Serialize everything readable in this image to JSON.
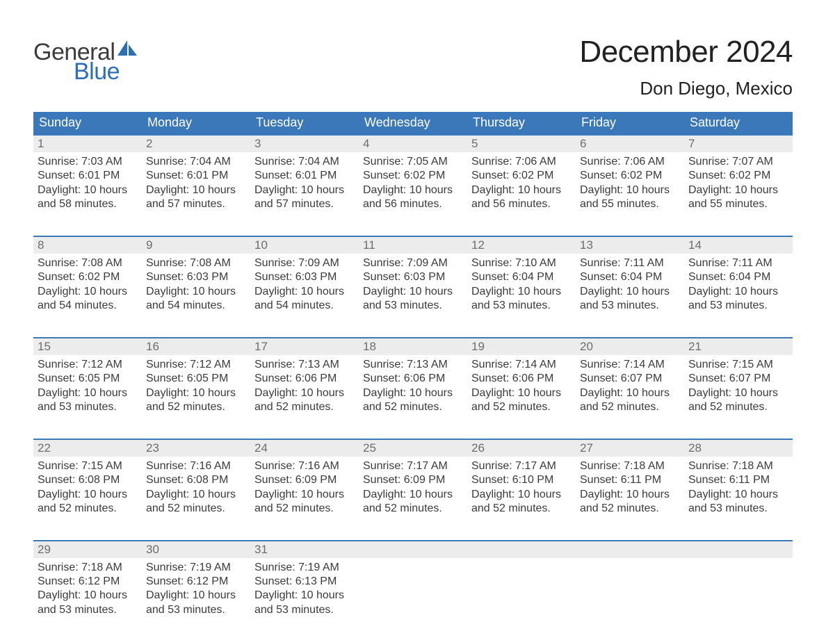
{
  "logo": {
    "text_top": "General",
    "text_bottom": "Blue"
  },
  "title": {
    "month": "December 2024",
    "location": "Don Diego, Mexico"
  },
  "colors": {
    "header_bg": "#3a78b9",
    "header_text": "#ffffff",
    "row_border": "#3a78b9",
    "daynum_bg": "#ececec",
    "daynum_text": "#6d6d6d",
    "body_text": "#3b3b3b",
    "logo_blue": "#2c6fb5"
  },
  "typography": {
    "month_title_pt": 44,
    "location_pt": 26,
    "weekday_pt": 18,
    "daynum_pt": 17,
    "body_pt": 16,
    "logo_pt": 34
  },
  "weekdays": [
    "Sunday",
    "Monday",
    "Tuesday",
    "Wednesday",
    "Thursday",
    "Friday",
    "Saturday"
  ],
  "labels": {
    "sunrise": "Sunrise:",
    "sunset": "Sunset:",
    "daylight": "Daylight:"
  },
  "weeks": [
    [
      {
        "n": "1",
        "sunrise": "7:03 AM",
        "sunset": "6:01 PM",
        "daylight1": "10 hours",
        "daylight2": "and 58 minutes."
      },
      {
        "n": "2",
        "sunrise": "7:04 AM",
        "sunset": "6:01 PM",
        "daylight1": "10 hours",
        "daylight2": "and 57 minutes."
      },
      {
        "n": "3",
        "sunrise": "7:04 AM",
        "sunset": "6:01 PM",
        "daylight1": "10 hours",
        "daylight2": "and 57 minutes."
      },
      {
        "n": "4",
        "sunrise": "7:05 AM",
        "sunset": "6:02 PM",
        "daylight1": "10 hours",
        "daylight2": "and 56 minutes."
      },
      {
        "n": "5",
        "sunrise": "7:06 AM",
        "sunset": "6:02 PM",
        "daylight1": "10 hours",
        "daylight2": "and 56 minutes."
      },
      {
        "n": "6",
        "sunrise": "7:06 AM",
        "sunset": "6:02 PM",
        "daylight1": "10 hours",
        "daylight2": "and 55 minutes."
      },
      {
        "n": "7",
        "sunrise": "7:07 AM",
        "sunset": "6:02 PM",
        "daylight1": "10 hours",
        "daylight2": "and 55 minutes."
      }
    ],
    [
      {
        "n": "8",
        "sunrise": "7:08 AM",
        "sunset": "6:02 PM",
        "daylight1": "10 hours",
        "daylight2": "and 54 minutes."
      },
      {
        "n": "9",
        "sunrise": "7:08 AM",
        "sunset": "6:03 PM",
        "daylight1": "10 hours",
        "daylight2": "and 54 minutes."
      },
      {
        "n": "10",
        "sunrise": "7:09 AM",
        "sunset": "6:03 PM",
        "daylight1": "10 hours",
        "daylight2": "and 54 minutes."
      },
      {
        "n": "11",
        "sunrise": "7:09 AM",
        "sunset": "6:03 PM",
        "daylight1": "10 hours",
        "daylight2": "and 53 minutes."
      },
      {
        "n": "12",
        "sunrise": "7:10 AM",
        "sunset": "6:04 PM",
        "daylight1": "10 hours",
        "daylight2": "and 53 minutes."
      },
      {
        "n": "13",
        "sunrise": "7:11 AM",
        "sunset": "6:04 PM",
        "daylight1": "10 hours",
        "daylight2": "and 53 minutes."
      },
      {
        "n": "14",
        "sunrise": "7:11 AM",
        "sunset": "6:04 PM",
        "daylight1": "10 hours",
        "daylight2": "and 53 minutes."
      }
    ],
    [
      {
        "n": "15",
        "sunrise": "7:12 AM",
        "sunset": "6:05 PM",
        "daylight1": "10 hours",
        "daylight2": "and 53 minutes."
      },
      {
        "n": "16",
        "sunrise": "7:12 AM",
        "sunset": "6:05 PM",
        "daylight1": "10 hours",
        "daylight2": "and 52 minutes."
      },
      {
        "n": "17",
        "sunrise": "7:13 AM",
        "sunset": "6:06 PM",
        "daylight1": "10 hours",
        "daylight2": "and 52 minutes."
      },
      {
        "n": "18",
        "sunrise": "7:13 AM",
        "sunset": "6:06 PM",
        "daylight1": "10 hours",
        "daylight2": "and 52 minutes."
      },
      {
        "n": "19",
        "sunrise": "7:14 AM",
        "sunset": "6:06 PM",
        "daylight1": "10 hours",
        "daylight2": "and 52 minutes."
      },
      {
        "n": "20",
        "sunrise": "7:14 AM",
        "sunset": "6:07 PM",
        "daylight1": "10 hours",
        "daylight2": "and 52 minutes."
      },
      {
        "n": "21",
        "sunrise": "7:15 AM",
        "sunset": "6:07 PM",
        "daylight1": "10 hours",
        "daylight2": "and 52 minutes."
      }
    ],
    [
      {
        "n": "22",
        "sunrise": "7:15 AM",
        "sunset": "6:08 PM",
        "daylight1": "10 hours",
        "daylight2": "and 52 minutes."
      },
      {
        "n": "23",
        "sunrise": "7:16 AM",
        "sunset": "6:08 PM",
        "daylight1": "10 hours",
        "daylight2": "and 52 minutes."
      },
      {
        "n": "24",
        "sunrise": "7:16 AM",
        "sunset": "6:09 PM",
        "daylight1": "10 hours",
        "daylight2": "and 52 minutes."
      },
      {
        "n": "25",
        "sunrise": "7:17 AM",
        "sunset": "6:09 PM",
        "daylight1": "10 hours",
        "daylight2": "and 52 minutes."
      },
      {
        "n": "26",
        "sunrise": "7:17 AM",
        "sunset": "6:10 PM",
        "daylight1": "10 hours",
        "daylight2": "and 52 minutes."
      },
      {
        "n": "27",
        "sunrise": "7:18 AM",
        "sunset": "6:11 PM",
        "daylight1": "10 hours",
        "daylight2": "and 52 minutes."
      },
      {
        "n": "28",
        "sunrise": "7:18 AM",
        "sunset": "6:11 PM",
        "daylight1": "10 hours",
        "daylight2": "and 53 minutes."
      }
    ],
    [
      {
        "n": "29",
        "sunrise": "7:18 AM",
        "sunset": "6:12 PM",
        "daylight1": "10 hours",
        "daylight2": "and 53 minutes."
      },
      {
        "n": "30",
        "sunrise": "7:19 AM",
        "sunset": "6:12 PM",
        "daylight1": "10 hours",
        "daylight2": "and 53 minutes."
      },
      {
        "n": "31",
        "sunrise": "7:19 AM",
        "sunset": "6:13 PM",
        "daylight1": "10 hours",
        "daylight2": "and 53 minutes."
      },
      {
        "empty": true
      },
      {
        "empty": true
      },
      {
        "empty": true
      },
      {
        "empty": true
      }
    ]
  ]
}
